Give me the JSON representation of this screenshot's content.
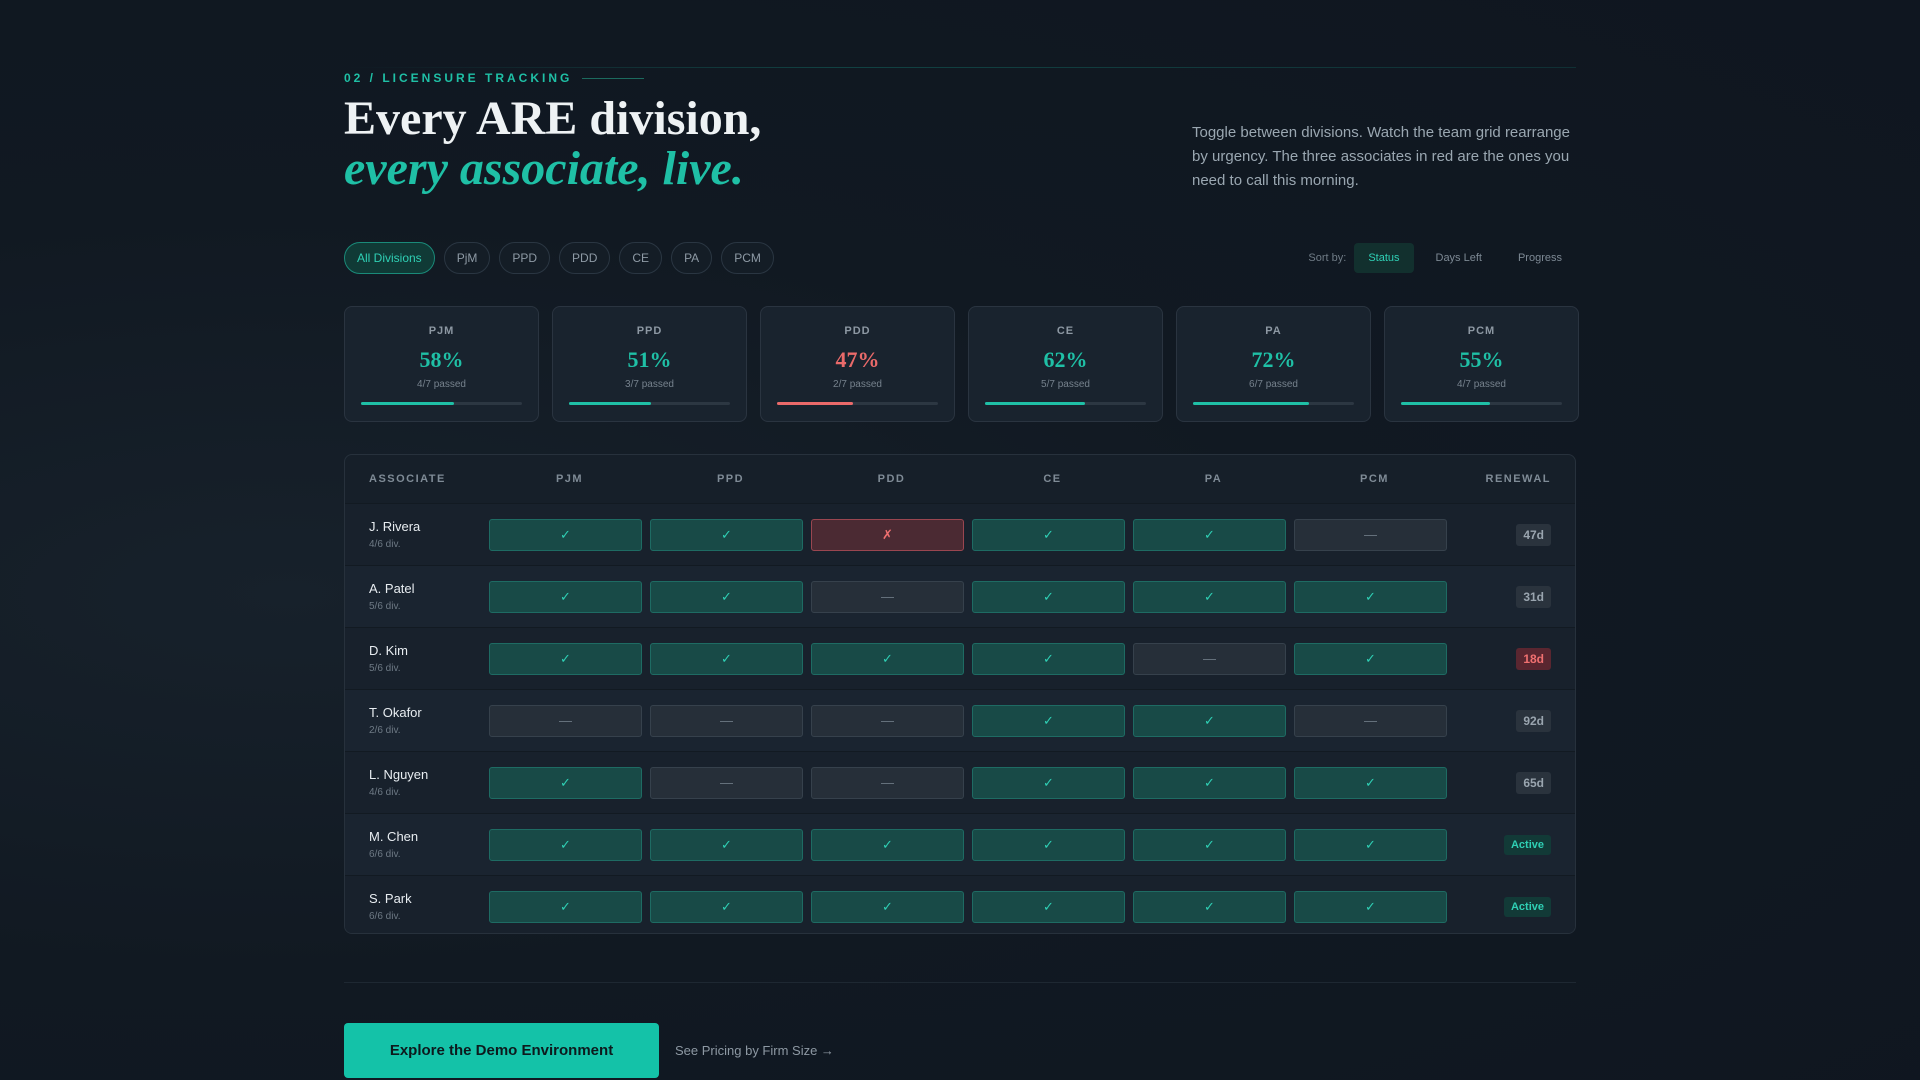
{
  "eyebrow": "02 / LICENSURE TRACKING",
  "title": {
    "line1": "Every ARE division,",
    "line2": "every associate, live."
  },
  "description": "Toggle between divisions. Watch the team grid rearrange by urgency. The three associates in red are the ones you need to call this morning.",
  "filters": [
    {
      "label": "All Divisions",
      "active": true
    },
    {
      "label": "PjM"
    },
    {
      "label": "PPD"
    },
    {
      "label": "PDD"
    },
    {
      "label": "CE"
    },
    {
      "label": "PA"
    },
    {
      "label": "PCM"
    }
  ],
  "sort": {
    "label": "Sort by:",
    "options": [
      {
        "label": "Status",
        "active": true
      },
      {
        "label": "Days Left"
      },
      {
        "label": "Progress"
      }
    ]
  },
  "cards": [
    {
      "label": "PJM",
      "pct": "58%",
      "sub": "4/7 passed",
      "progress": 0.58,
      "status": "ok"
    },
    {
      "label": "PPD",
      "pct": "51%",
      "sub": "3/7 passed",
      "progress": 0.51,
      "status": "ok"
    },
    {
      "label": "PDD",
      "pct": "47%",
      "sub": "2/7 passed",
      "progress": 0.47,
      "status": "bad"
    },
    {
      "label": "CE",
      "pct": "62%",
      "sub": "5/7 passed",
      "progress": 0.62,
      "status": "ok"
    },
    {
      "label": "PA",
      "pct": "72%",
      "sub": "6/7 passed",
      "progress": 0.72,
      "status": "ok"
    },
    {
      "label": "PCM",
      "pct": "55%",
      "sub": "4/7 passed",
      "progress": 0.55,
      "status": "ok"
    }
  ],
  "grid": {
    "headers": [
      "ASSOCIATE",
      "PJM",
      "PPD",
      "PDD",
      "CE",
      "PA",
      "PCM",
      "RENEWAL"
    ],
    "symbols": {
      "pass": "✓",
      "pending": "—",
      "fail": "✗"
    },
    "rows": [
      {
        "name": "J. Rivera",
        "div": "4/6 div.",
        "cells": [
          "pass",
          "pass",
          "fail",
          "pass",
          "pass",
          "pending"
        ],
        "renewal": "47d",
        "renewal_status": "normal"
      },
      {
        "name": "A. Patel",
        "div": "5/6 div.",
        "cells": [
          "pass",
          "pass",
          "pending",
          "pass",
          "pass",
          "pass"
        ],
        "renewal": "31d",
        "renewal_status": "normal"
      },
      {
        "name": "D. Kim",
        "div": "5/6 div.",
        "cells": [
          "pass",
          "pass",
          "pass",
          "pass",
          "pending",
          "pass"
        ],
        "renewal": "18d",
        "renewal_status": "urgent"
      },
      {
        "name": "T. Okafor",
        "div": "2/6 div.",
        "cells": [
          "pending",
          "pending",
          "pending",
          "pass",
          "pass",
          "pending"
        ],
        "renewal": "92d",
        "renewal_status": "normal"
      },
      {
        "name": "L. Nguyen",
        "div": "4/6 div.",
        "cells": [
          "pass",
          "pending",
          "pending",
          "pass",
          "pass",
          "pass"
        ],
        "renewal": "65d",
        "renewal_status": "normal"
      },
      {
        "name": "M. Chen",
        "div": "6/6 div.",
        "cells": [
          "pass",
          "pass",
          "pass",
          "pass",
          "pass",
          "pass"
        ],
        "renewal": "Active",
        "renewal_status": "active"
      },
      {
        "name": "S. Park",
        "div": "6/6 div.",
        "cells": [
          "pass",
          "pass",
          "pass",
          "pass",
          "pass",
          "pass"
        ],
        "renewal": "Active",
        "renewal_status": "active"
      }
    ]
  },
  "cta": {
    "primary": "Explore the Demo Environment",
    "secondary": "See Pricing by Firm Size →"
  },
  "colors": {
    "accent": "#1fc0a6",
    "danger": "#ea6a6a",
    "background": "#111922"
  }
}
